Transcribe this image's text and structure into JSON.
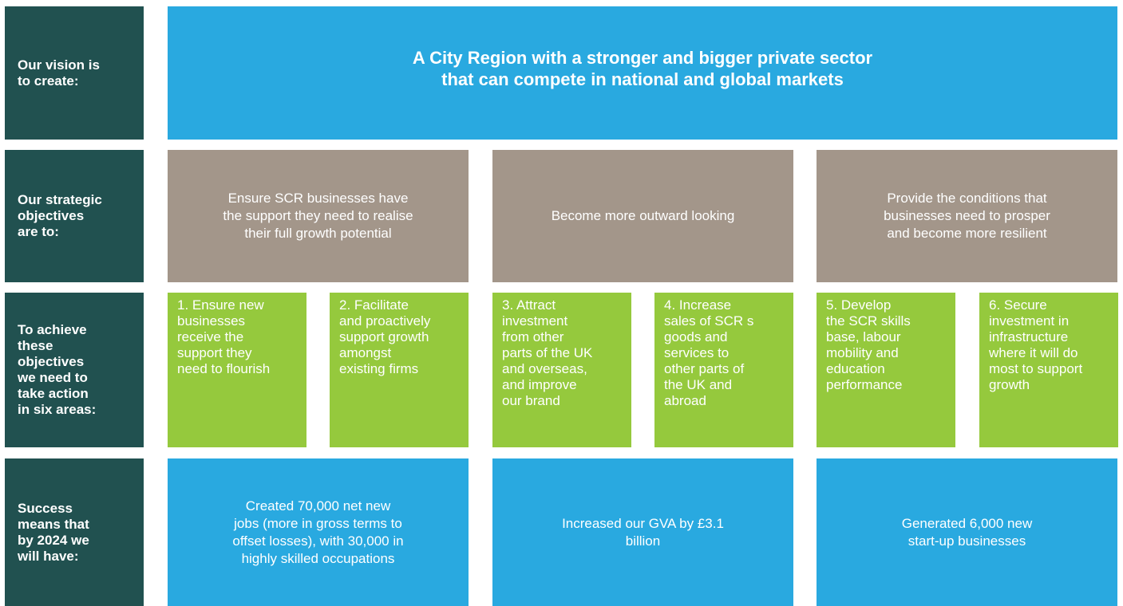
{
  "labels": [
    [
      "Our vision is",
      "to create:"
    ],
    [
      "Our strategic",
      "objectives",
      "are to:"
    ],
    [
      "To achieve",
      "these",
      "objectives",
      "we need to",
      "take action",
      "in six areas:"
    ],
    [
      "Success",
      "means that",
      "by 2024 we",
      "will have:"
    ]
  ],
  "vision": [
    "A City Region with a stronger and bigger private sector",
    "that can compete in national and global markets"
  ],
  "objectives": [
    [
      "Ensure SCR businesses have",
      "the support they need to realise",
      "their full growth potential"
    ],
    [
      "Become more outward looking"
    ],
    [
      "Provide the conditions that",
      "businesses need to prosper",
      "and become more resilient"
    ]
  ],
  "actions": [
    [
      "1. Ensure new",
      "businesses",
      "receive the",
      "support they",
      "need to flourish"
    ],
    [
      "2. Facilitate",
      "and proactively",
      "support growth",
      "amongst",
      "existing firms"
    ],
    [
      "3. Attract",
      "investment",
      "from other",
      "parts of the UK",
      "and overseas,",
      "and improve",
      "our brand"
    ],
    [
      "4. Increase",
      "sales of SCR s",
      "goods and",
      "services to",
      "other parts of",
      "the UK and",
      "abroad"
    ],
    [
      "5. Develop",
      "the SCR skills",
      "base, labour",
      "mobility and",
      "education",
      "performance"
    ],
    [
      "6. Secure",
      "investment in",
      "infrastructure",
      "where it will do",
      "most to support",
      "growth"
    ]
  ],
  "outcomes": [
    [
      "Created 70,000 net new",
      "jobs (more in gross terms to",
      "offset losses), with 30,000 in",
      "highly skilled occupations"
    ],
    [
      "Increased our GVA by £3.1",
      "billion"
    ],
    [
      "Generated 6,000 new",
      "start-up businesses"
    ]
  ]
}
